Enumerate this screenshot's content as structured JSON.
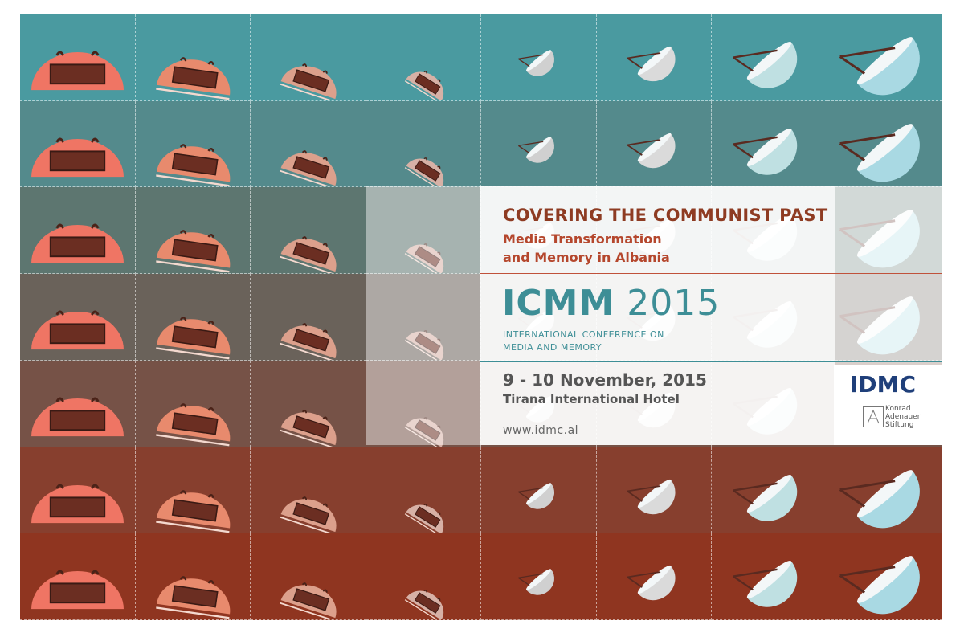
{
  "poster": {
    "title": "COVERING THE COMMUNIST PAST",
    "subtitle_line1": "Media Transformation",
    "subtitle_line2": "and Memory in Albania",
    "event_acronym": "ICMM",
    "event_year": "2015",
    "conference_line1": "INTERNATIONAL CONFERENCE ON",
    "conference_line2": "MEDIA AND MEMORY",
    "dates": "9 - 10 November, 2015",
    "venue": "Tirana International Hotel",
    "website": "www.idmc.al"
  },
  "logos": {
    "idmc": "IDMC",
    "kas_line1": "Konrad",
    "kas_line2": "Adenauer",
    "kas_line3": "Stiftung"
  },
  "colors": {
    "row_backgrounds": [
      "#4a9aa0",
      "#548a8c",
      "#5d7670",
      "#6a625a",
      "#765247",
      "#873f2e",
      "#8f3520"
    ],
    "title_red": "#8e3b22",
    "teal_text": "#3d8e96",
    "idmc_blue": "#1f3f7a"
  },
  "icons": {
    "tile_sequence": [
      "bunker-icon",
      "bunker-icon",
      "bunker-icon",
      "bunker-icon",
      "satellite-dish-icon",
      "satellite-dish-icon",
      "satellite-dish-icon",
      "satellite-dish-icon"
    ]
  }
}
